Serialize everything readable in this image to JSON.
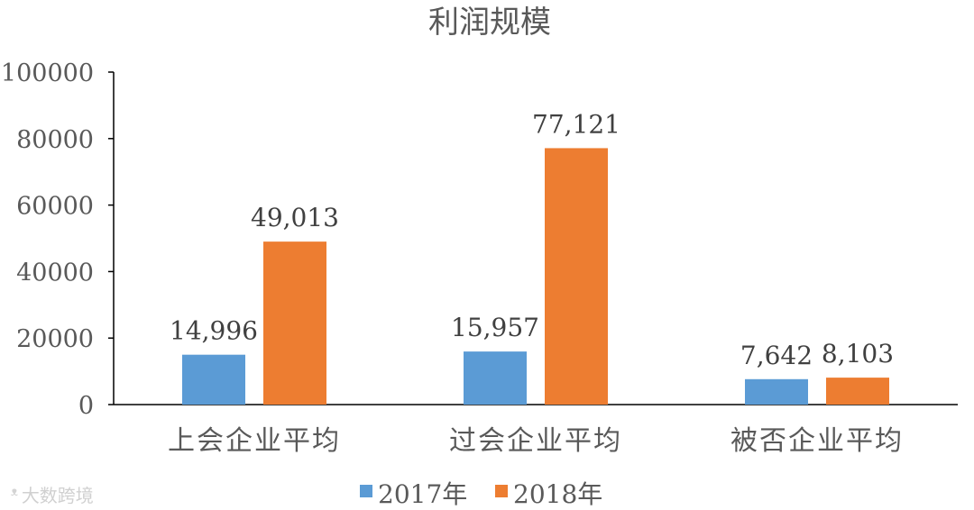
{
  "chart_data": {
    "type": "bar",
    "title": "利润规模",
    "categories": [
      "上会企业平均",
      "过会企业平均",
      "被否企业平均"
    ],
    "series": [
      {
        "name": "2017年",
        "color": "#5b9bd5",
        "values": [
          14996,
          15957,
          7642
        ],
        "labels": [
          "14,996",
          "15,957",
          "7,642"
        ]
      },
      {
        "name": "2018年",
        "color": "#ed7d31",
        "values": [
          49013,
          77121,
          8103
        ],
        "labels": [
          "49,013",
          "77,121",
          "8,103"
        ]
      }
    ],
    "ylim": [
      0,
      100000
    ],
    "yticks": [
      0,
      20000,
      40000,
      60000,
      80000,
      100000
    ],
    "grid": false,
    "legend_position": "bottom"
  },
  "watermark": {
    "text": "大数跨境",
    "icon": "weibo-logo-icon"
  }
}
